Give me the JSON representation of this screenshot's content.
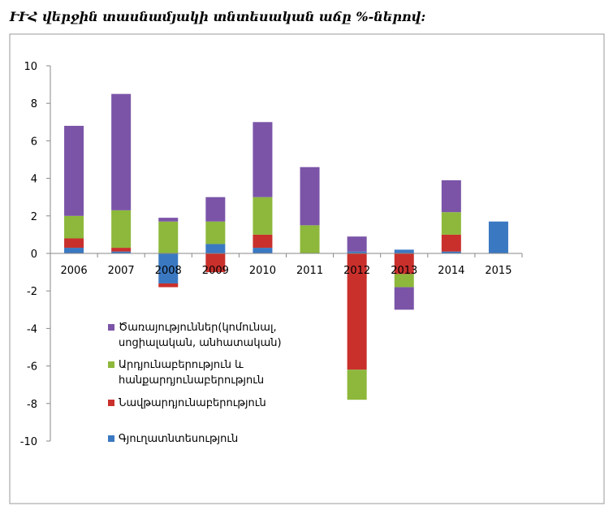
{
  "chart_data": {
    "type": "bar",
    "stacked": true,
    "title": "ՒՒՀ վերջին տասնամյակի տնտեսական աճը %-ներով:",
    "categories": [
      "2006",
      "2007",
      "2008",
      "2009",
      "2010",
      "2011",
      "2012",
      "2013",
      "2014",
      "2015"
    ],
    "series": [
      {
        "name": "Գյուղատնտեսություն",
        "color": "#3a78c2",
        "values": [
          0.3,
          0.1,
          -1.6,
          0.5,
          0.3,
          0,
          0.1,
          0.2,
          0.1,
          1.7
        ]
      },
      {
        "name": "Նավթարդյունաբերություն",
        "color": "#c9302c",
        "values": [
          0.5,
          0.2,
          -0.2,
          -1.0,
          0.7,
          0,
          -6.2,
          -1.1,
          0.9,
          0
        ]
      },
      {
        "name": "Արդյունաբերություն և հանքարդյունաբերություն",
        "color": "#8db83c",
        "values": [
          1.2,
          2.0,
          1.7,
          1.2,
          2.0,
          1.5,
          -1.6,
          -0.7,
          1.2,
          0
        ]
      },
      {
        "name": "Ծառայություններ(կոմունալ, սոցիալական, անհատական)",
        "color": "#7b54a8",
        "values": [
          4.8,
          6.2,
          0.2,
          1.3,
          4.0,
          3.1,
          0.8,
          -1.2,
          1.7,
          0
        ]
      }
    ],
    "ylim": [
      -10,
      10
    ],
    "yticks": [
      -10,
      -8,
      -6,
      -4,
      -2,
      0,
      2,
      4,
      6,
      8,
      10
    ],
    "grid": false
  }
}
